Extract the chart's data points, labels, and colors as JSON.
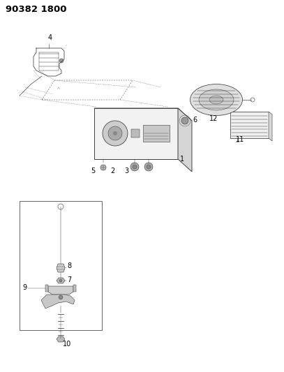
{
  "title": "90382 1800",
  "bg_color": "#ffffff",
  "line_color": "#404040",
  "text_color": "#000000",
  "title_fontsize": 9.5,
  "label_fontsize": 7
}
